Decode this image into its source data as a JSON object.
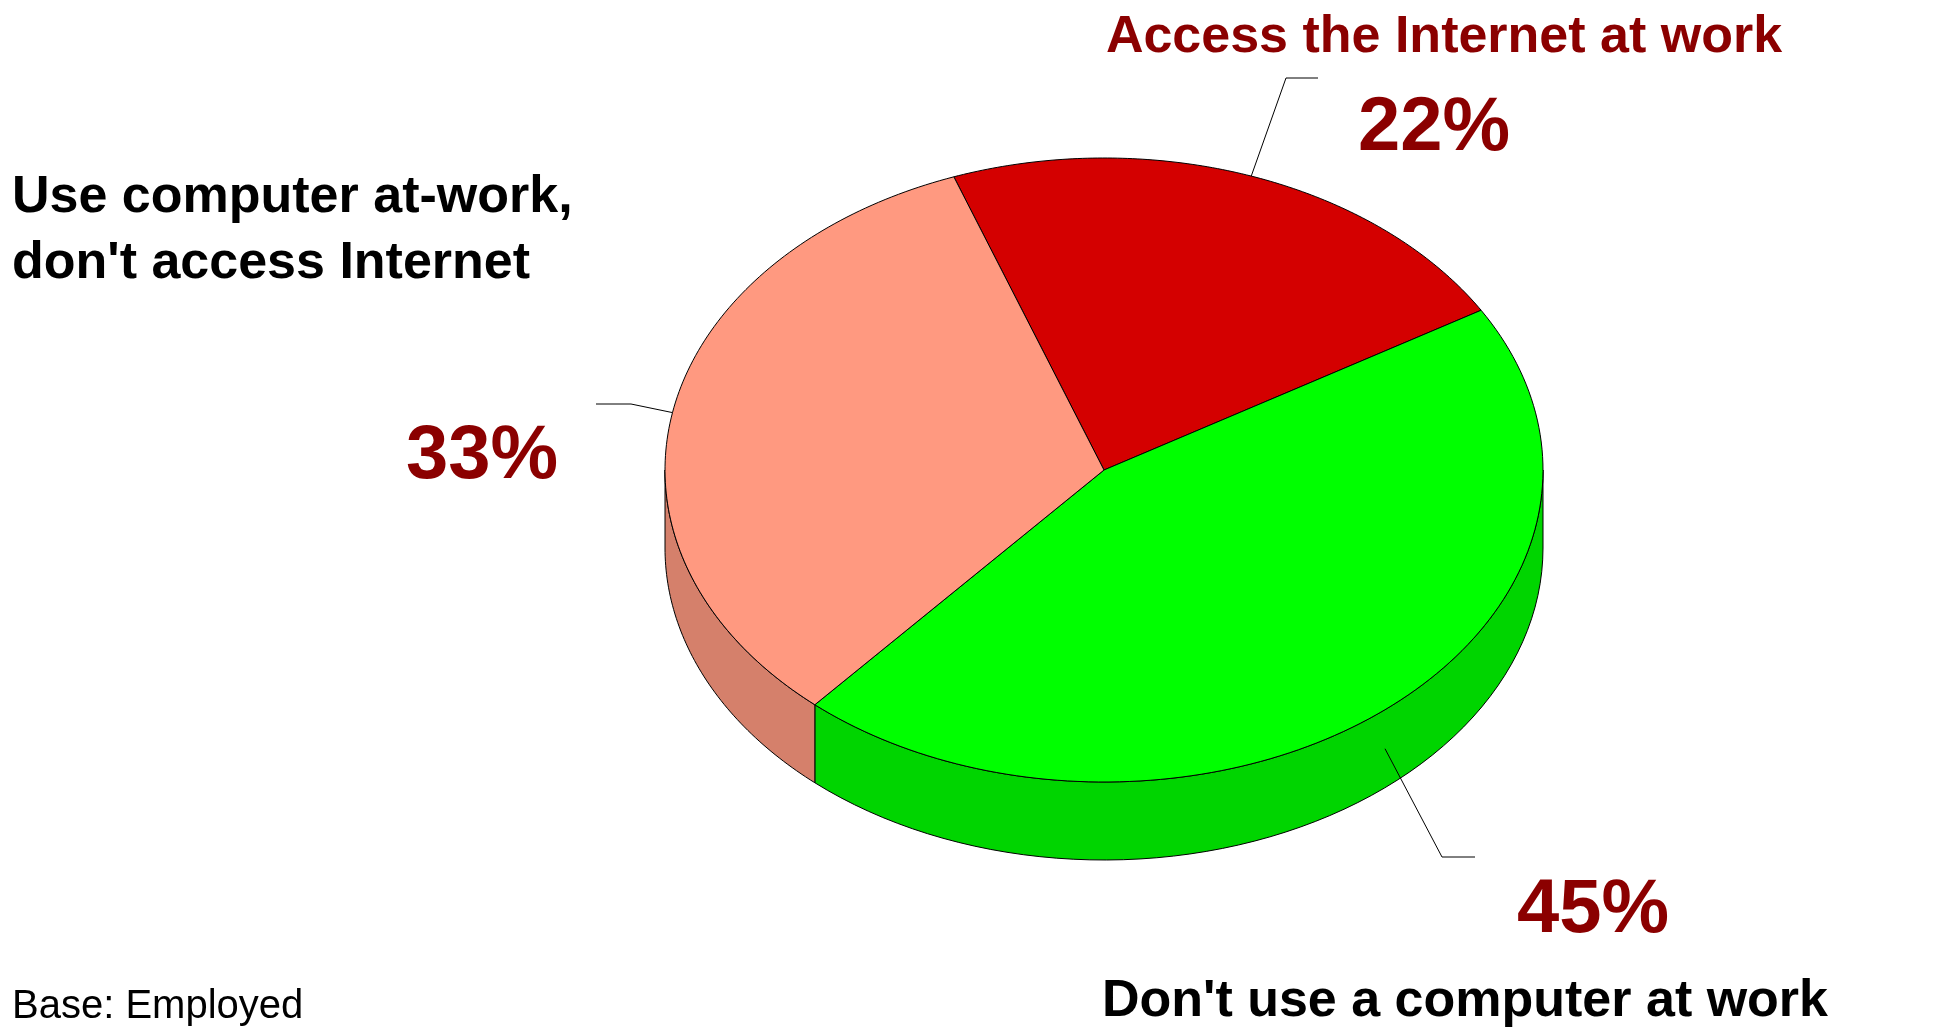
{
  "chart_data": {
    "type": "pie",
    "categories": [
      "Access the Internet at work",
      "Don't use a computer at work",
      "Use computer at-work,\ndon't access Internet"
    ],
    "values": [
      22,
      45,
      33
    ],
    "colors": [
      "#d40000",
      "#00ff00",
      "#ff9980"
    ],
    "value_labels": [
      "22%",
      "45%",
      "33%"
    ],
    "annotations": [
      "Base: Employed"
    ]
  }
}
